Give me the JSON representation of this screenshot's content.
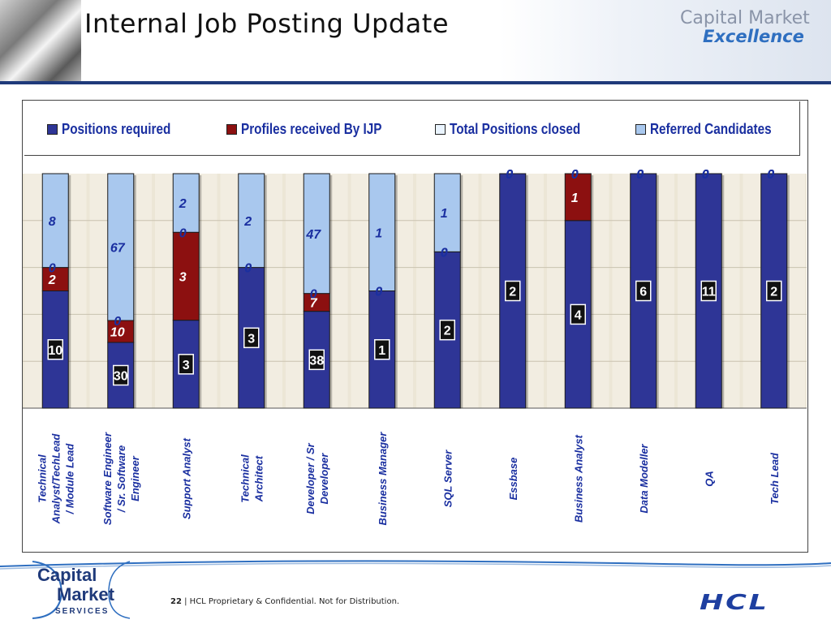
{
  "slide": {
    "title": "Internal Job Posting Update",
    "brand_line1": "Capital Market",
    "brand_line2": "Excellence",
    "logo_line1": "Capital",
    "logo_line2": "Market",
    "logo_line3": "SERVICES",
    "page_number": "22",
    "separator": "|",
    "footer_text": "HCL Proprietary & Confidential. Not for Distribution.",
    "company_logo": "HCL"
  },
  "colors": {
    "positions": "#2e3596",
    "profiles": "#8c1010",
    "closed": "#eaf4ff",
    "referred": "#a9c8ee",
    "plot_bg": "#ece6d6",
    "label_blue": "#1a2fa0",
    "title_blue": "#1f3a7a"
  },
  "chart_data": {
    "type": "bar",
    "stacking": "percent",
    "legend_position": "top",
    "categories": [
      "Technical Analyst/TechLead / Module Lead",
      "Software Engineer / Sr. Software Engineer",
      "Support Analyst",
      "Technical Architect",
      "Developer / Sr Developer",
      "Business Manager",
      "SQL Server",
      "Essbase",
      "Business Analyst",
      "Data Modeller",
      "QA",
      "Tech Lead"
    ],
    "category_lines": [
      [
        "Technical",
        "Analyst/TechLead",
        "/ Module Lead"
      ],
      [
        "Software Engineer",
        "/ Sr. Software",
        "Engineer"
      ],
      [
        "Support Analyst"
      ],
      [
        "Technical",
        "Architect"
      ],
      [
        "Developer / Sr",
        "Developer"
      ],
      [
        "Business Manager"
      ],
      [
        "SQL Server"
      ],
      [
        "Essbase"
      ],
      [
        "Business Analyst"
      ],
      [
        "Data Modeller"
      ],
      [
        "QA"
      ],
      [
        "Tech Lead"
      ]
    ],
    "series": [
      {
        "name": "Positions required",
        "values": [
          10,
          30,
          3,
          3,
          38,
          1,
          2,
          2,
          4,
          6,
          11,
          2
        ]
      },
      {
        "name": "Profiles received By IJP",
        "values": [
          2,
          10,
          3,
          0,
          7,
          0,
          0,
          0,
          1,
          0,
          0,
          0
        ]
      },
      {
        "name": "Total Positions closed",
        "values": [
          0,
          0,
          0,
          0,
          0,
          0,
          0,
          0,
          0,
          0,
          0,
          0
        ]
      },
      {
        "name": "Referred Candidates",
        "values": [
          8,
          67,
          2,
          2,
          47,
          1,
          1,
          0,
          0,
          0,
          0,
          0
        ]
      }
    ],
    "ylim": [
      0,
      100
    ],
    "grid": true
  }
}
